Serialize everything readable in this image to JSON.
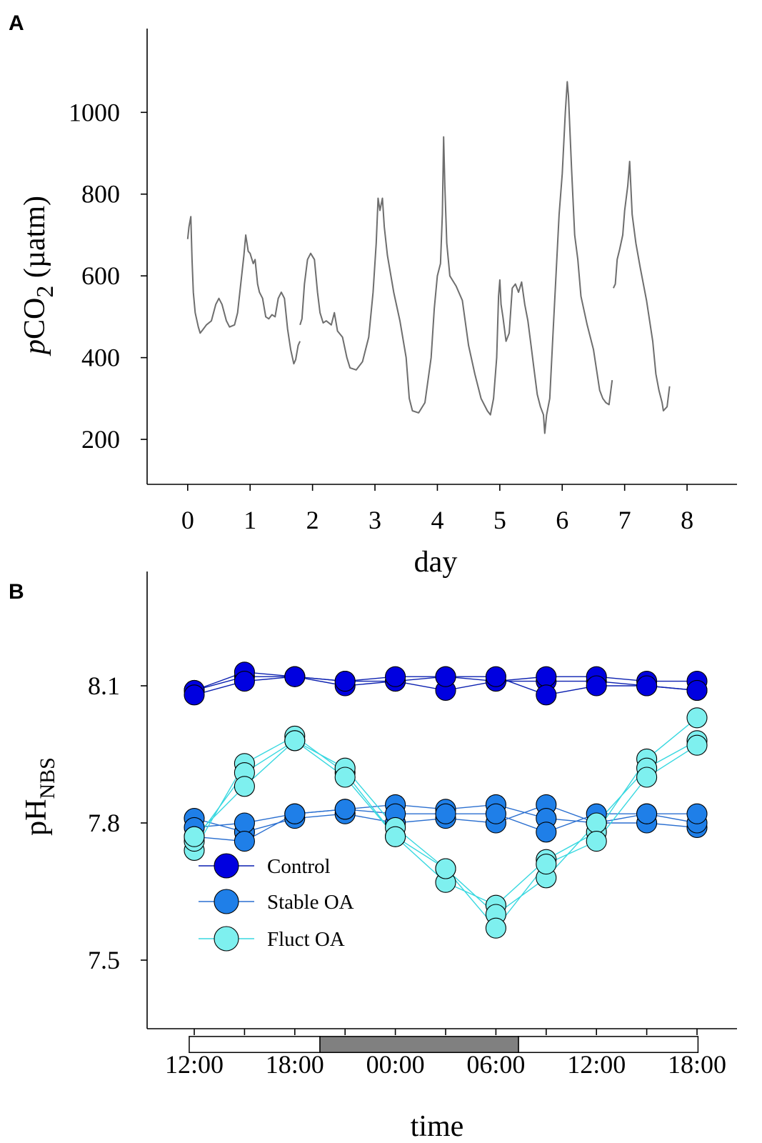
{
  "chart_data": [
    {
      "panel": "A",
      "type": "line",
      "xlabel": "day",
      "ylabel_italic": "p",
      "ylabel_main": "CO",
      "ylabel_sub": "2",
      "ylabel_unit": " (µatm)",
      "xlim": [
        -0.65,
        8.8
      ],
      "ylim": [
        90,
        1205
      ],
      "xticks": [
        0,
        1,
        2,
        3,
        4,
        5,
        6,
        7,
        8
      ],
      "xtick_labels": [
        "0",
        "1",
        "2",
        "3",
        "4",
        "5",
        "6",
        "7",
        "8"
      ],
      "yticks": [
        200,
        400,
        600,
        800,
        1000
      ],
      "ytick_labels": [
        "200",
        "400",
        "600",
        "800",
        "1000"
      ],
      "line_color": "#6e6e6e",
      "segments": [
        [
          [
            0.0,
            690
          ],
          [
            0.02,
            720
          ],
          [
            0.05,
            745
          ],
          [
            0.07,
            640
          ],
          [
            0.09,
            560
          ],
          [
            0.12,
            510
          ],
          [
            0.17,
            475
          ],
          [
            0.2,
            460
          ],
          [
            0.25,
            470
          ],
          [
            0.3,
            480
          ],
          [
            0.38,
            490
          ],
          [
            0.45,
            530
          ],
          [
            0.5,
            545
          ],
          [
            0.55,
            530
          ],
          [
            0.62,
            490
          ],
          [
            0.67,
            475
          ],
          [
            0.75,
            480
          ],
          [
            0.8,
            510
          ],
          [
            0.85,
            580
          ],
          [
            0.9,
            650
          ],
          [
            0.93,
            700
          ],
          [
            0.97,
            660
          ],
          [
            1.0,
            655
          ],
          [
            1.05,
            630
          ],
          [
            1.08,
            640
          ],
          [
            1.12,
            580
          ],
          [
            1.15,
            560
          ],
          [
            1.2,
            545
          ],
          [
            1.25,
            500
          ],
          [
            1.3,
            495
          ],
          [
            1.35,
            505
          ],
          [
            1.4,
            500
          ],
          [
            1.45,
            545
          ],
          [
            1.5,
            560
          ],
          [
            1.55,
            545
          ],
          [
            1.6,
            470
          ],
          [
            1.65,
            420
          ],
          [
            1.7,
            385
          ],
          [
            1.73,
            395
          ],
          [
            1.77,
            430
          ],
          [
            1.8,
            440
          ]
        ],
        [
          [
            1.8,
            480
          ],
          [
            1.83,
            495
          ],
          [
            1.87,
            580
          ],
          [
            1.92,
            640
          ],
          [
            1.97,
            655
          ],
          [
            2.03,
            640
          ],
          [
            2.08,
            560
          ],
          [
            2.12,
            510
          ],
          [
            2.17,
            485
          ],
          [
            2.22,
            490
          ],
          [
            2.3,
            480
          ],
          [
            2.35,
            510
          ],
          [
            2.4,
            465
          ],
          [
            2.48,
            450
          ],
          [
            2.55,
            400
          ],
          [
            2.6,
            375
          ],
          [
            2.7,
            370
          ],
          [
            2.8,
            390
          ],
          [
            2.9,
            450
          ],
          [
            2.97,
            560
          ],
          [
            3.02,
            680
          ],
          [
            3.05,
            790
          ],
          [
            3.08,
            760
          ],
          [
            3.12,
            790
          ],
          [
            3.15,
            720
          ],
          [
            3.2,
            650
          ],
          [
            3.3,
            560
          ],
          [
            3.4,
            490
          ],
          [
            3.5,
            400
          ],
          [
            3.55,
            300
          ],
          [
            3.6,
            270
          ],
          [
            3.7,
            265
          ],
          [
            3.8,
            290
          ],
          [
            3.9,
            400
          ],
          [
            3.95,
            520
          ],
          [
            4.0,
            600
          ],
          [
            4.05,
            630
          ],
          [
            4.08,
            750
          ],
          [
            4.1,
            940
          ],
          [
            4.12,
            820
          ],
          [
            4.15,
            680
          ],
          [
            4.2,
            600
          ],
          [
            4.3,
            575
          ],
          [
            4.4,
            540
          ],
          [
            4.5,
            430
          ],
          [
            4.6,
            360
          ],
          [
            4.7,
            300
          ],
          [
            4.8,
            270
          ],
          [
            4.85,
            260
          ],
          [
            4.9,
            300
          ],
          [
            4.95,
            400
          ],
          [
            4.98,
            550
          ],
          [
            5.0,
            590
          ],
          [
            5.02,
            530
          ],
          [
            5.05,
            500
          ],
          [
            5.1,
            440
          ],
          [
            5.15,
            460
          ],
          [
            5.2,
            570
          ],
          [
            5.25,
            580
          ],
          [
            5.3,
            560
          ],
          [
            5.35,
            585
          ],
          [
            5.4,
            530
          ],
          [
            5.45,
            490
          ],
          [
            5.5,
            430
          ],
          [
            5.55,
            370
          ],
          [
            5.6,
            310
          ],
          [
            5.65,
            280
          ],
          [
            5.7,
            260
          ],
          [
            5.72,
            215
          ],
          [
            5.75,
            260
          ],
          [
            5.8,
            300
          ],
          [
            5.85,
            450
          ],
          [
            5.9,
            600
          ],
          [
            5.95,
            750
          ],
          [
            6.0,
            850
          ],
          [
            6.05,
            1000
          ],
          [
            6.08,
            1075
          ],
          [
            6.1,
            1040
          ],
          [
            6.15,
            860
          ],
          [
            6.2,
            700
          ],
          [
            6.25,
            640
          ],
          [
            6.3,
            550
          ],
          [
            6.4,
            480
          ],
          [
            6.5,
            420
          ],
          [
            6.6,
            320
          ],
          [
            6.65,
            300
          ],
          [
            6.7,
            290
          ],
          [
            6.75,
            285
          ],
          [
            6.8,
            345
          ]
        ],
        [
          [
            6.82,
            570
          ],
          [
            6.85,
            580
          ],
          [
            6.88,
            640
          ],
          [
            6.92,
            665
          ],
          [
            6.97,
            700
          ],
          [
            7.0,
            760
          ],
          [
            7.05,
            820
          ],
          [
            7.08,
            880
          ],
          [
            7.12,
            750
          ],
          [
            7.18,
            680
          ],
          [
            7.25,
            620
          ],
          [
            7.35,
            540
          ],
          [
            7.45,
            440
          ],
          [
            7.5,
            360
          ],
          [
            7.55,
            320
          ],
          [
            7.6,
            290
          ],
          [
            7.62,
            270
          ],
          [
            7.68,
            280
          ],
          [
            7.72,
            330
          ]
        ]
      ]
    },
    {
      "panel": "B",
      "type": "line",
      "xlabel": "time",
      "ylabel_main": "pH",
      "ylabel_sub": "NBS",
      "ylim": [
        7.35,
        8.35
      ],
      "x_count": 11,
      "xtick_labels": [
        "12:00",
        "18:00",
        "00:00",
        "06:00",
        "12:00",
        "18:00"
      ],
      "xtick_label_positions": [
        0,
        2,
        4,
        6,
        8,
        10
      ],
      "yticks": [
        7.5,
        7.8,
        8.1
      ],
      "ytick_labels": [
        "7.5",
        "7.8",
        "8.1"
      ],
      "light_bar": {
        "segments": [
          {
            "start": -0.1,
            "end": 2.5,
            "fill": "#ffffff"
          },
          {
            "start": 2.5,
            "end": 6.45,
            "fill": "#808080"
          },
          {
            "start": 6.45,
            "end": 10.02,
            "fill": "#ffffff"
          }
        ],
        "ph_top": 7.333,
        "ph_bottom": 7.298
      },
      "groups": [
        {
          "name": "Control",
          "marker_color": "#0000e0",
          "line_color": "#0a1fb0",
          "series": [
            [
              8.09,
              8.12,
              8.12,
              8.11,
              8.11,
              8.12,
              8.11,
              8.11,
              8.11,
              8.1,
              8.09
            ],
            [
              8.09,
              8.13,
              8.12,
              8.1,
              8.11,
              8.09,
              8.11,
              8.12,
              8.12,
              8.11,
              8.11
            ],
            [
              8.08,
              8.11,
              8.12,
              8.11,
              8.12,
              8.12,
              8.12,
              8.08,
              8.1,
              8.1,
              8.09
            ]
          ]
        },
        {
          "name": "Stable OA",
          "marker_color": "#1f7fe8",
          "line_color": "#2a6fd0",
          "series": [
            [
              7.81,
              7.78,
              7.81,
              7.82,
              7.8,
              7.81,
              7.8,
              7.84,
              7.8,
              7.8,
              7.79
            ],
            [
              7.79,
              7.8,
              7.82,
              7.83,
              7.84,
              7.83,
              7.84,
              7.81,
              7.8,
              7.82,
              7.8
            ],
            [
              7.77,
              7.76,
              7.82,
              7.83,
              7.82,
              7.82,
              7.82,
              7.78,
              7.82,
              7.82,
              7.82
            ]
          ]
        },
        {
          "name": "Fluct OA",
          "marker_color": "#7ef0ef",
          "line_color": "#38d8e0",
          "series": [
            [
              7.74,
              7.93,
              7.99,
              7.91,
              7.77,
              7.67,
              7.62,
              7.72,
              7.78,
              7.94,
              8.03
            ],
            [
              7.76,
              7.91,
              7.98,
              7.92,
              7.79,
              7.7,
              7.6,
              7.68,
              7.8,
              7.92,
              7.98
            ],
            [
              7.77,
              7.88,
              7.98,
              7.9,
              7.77,
              7.7,
              7.57,
              7.71,
              7.76,
              7.9,
              7.97
            ]
          ]
        }
      ]
    }
  ],
  "panels": {
    "a_label": "A",
    "b_label": "B"
  }
}
